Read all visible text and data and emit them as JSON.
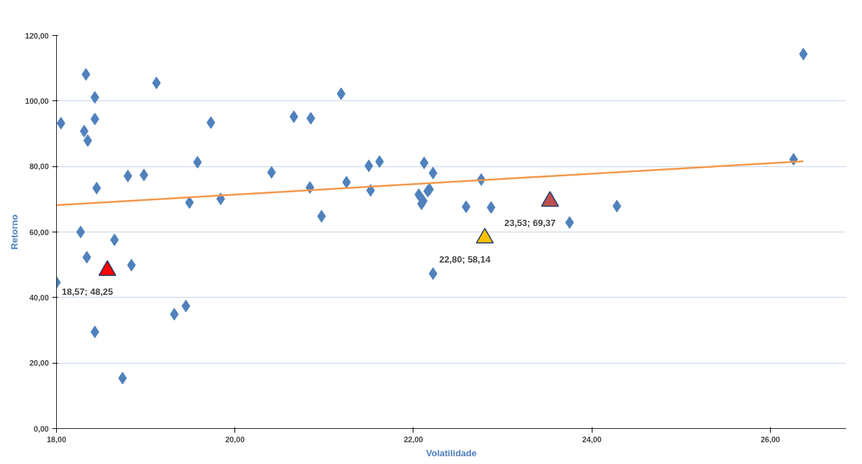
{
  "chart_data": {
    "type": "scatter",
    "xlabel": "Volatilidade",
    "ylabel": "Retorno",
    "xlim": [
      18,
      26.85
    ],
    "ylim": [
      0,
      120
    ],
    "xticks": [
      {
        "value": 18,
        "label": "18,00"
      },
      {
        "value": 20,
        "label": "20,00"
      },
      {
        "value": 22,
        "label": "22,00"
      },
      {
        "value": 24,
        "label": "24,00"
      },
      {
        "value": 26,
        "label": "26,00"
      }
    ],
    "yticks": [
      {
        "value": 0,
        "label": "0,00"
      },
      {
        "value": 20,
        "label": "20,00"
      },
      {
        "value": 40,
        "label": "40,00"
      },
      {
        "value": 60,
        "label": "60,00"
      },
      {
        "value": 80,
        "label": "80,00"
      },
      {
        "value": 100,
        "label": "100,00"
      },
      {
        "value": 120,
        "label": "120,00"
      }
    ],
    "grid": "y",
    "series": [
      {
        "marker": "diamond",
        "color": "#4f81bd",
        "x": [
          18.0,
          18.05,
          18.33,
          18.31,
          18.35,
          18.27,
          18.34,
          18.43,
          18.43,
          18.45,
          18.43,
          18.65,
          18.84,
          18.8,
          18.98,
          18.74,
          19.12,
          19.32,
          19.45,
          19.49,
          19.58,
          19.73,
          19.84,
          20.41,
          20.66,
          20.85,
          20.84,
          20.97,
          21.19,
          21.25,
          21.5,
          21.62,
          21.52,
          22.06,
          22.09,
          22.11,
          22.12,
          22.16,
          22.18,
          22.22,
          22.22,
          22.59,
          22.76,
          22.87,
          23.75,
          24.28,
          26.26,
          26.37
        ],
        "values": [
          44.6,
          93.2,
          108.1,
          90.8,
          87.9,
          60.0,
          52.3,
          101.1,
          94.5,
          73.4,
          29.5,
          57.6,
          49.9,
          77.1,
          77.4,
          15.4,
          105.5,
          34.9,
          37.4,
          69.0,
          81.3,
          93.4,
          70.1,
          78.2,
          95.2,
          94.7,
          73.6,
          64.8,
          102.2,
          75.2,
          80.2,
          81.5,
          72.7,
          71.4,
          68.6,
          69.5,
          81.1,
          72.5,
          73.0,
          78.0,
          47.3,
          67.7,
          76.0,
          67.5,
          62.9,
          67.9,
          82.2,
          114.3
        ]
      },
      {
        "type": "line",
        "color": "#f79646",
        "x": [
          18.0,
          26.37
        ],
        "values": [
          68.2,
          81.6
        ]
      },
      {
        "marker": "triangle",
        "color": "#ff0000",
        "x": [
          18.57
        ],
        "values": [
          48.25
        ],
        "value_labels": [
          "18,57; 48,25"
        ]
      },
      {
        "marker": "triangle",
        "color": "#ffc000",
        "x": [
          22.8
        ],
        "values": [
          58.14
        ],
        "value_labels": [
          "22,80; 58,14"
        ]
      },
      {
        "marker": "triangle",
        "color": "#c0504d",
        "x": [
          23.53
        ],
        "values": [
          69.37
        ],
        "value_labels": [
          "23,53; 69,37"
        ]
      }
    ]
  }
}
